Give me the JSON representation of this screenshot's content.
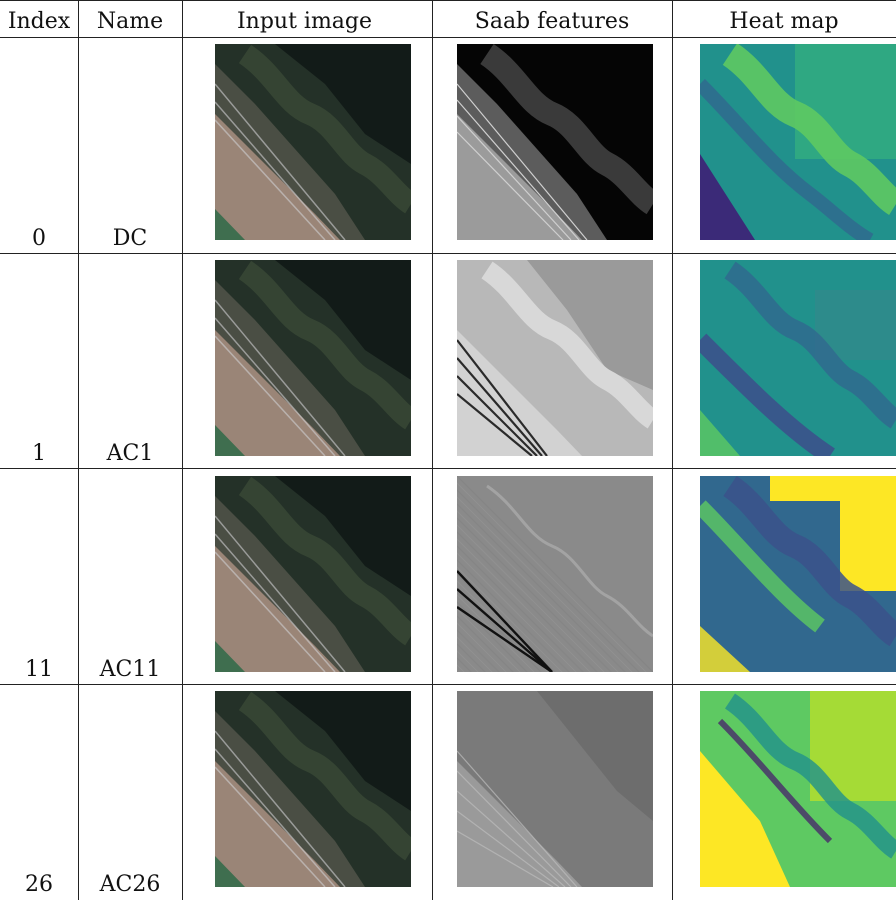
{
  "headers": {
    "index": "Index",
    "name": "Name",
    "input": "Input image",
    "saab": "Saab features",
    "heat": "Heat map"
  },
  "rows": [
    {
      "index": "0",
      "name": "DC",
      "saab_style": "dc",
      "heat_style": "dc"
    },
    {
      "index": "1",
      "name": "AC1",
      "saab_style": "ac1",
      "heat_style": "ac1"
    },
    {
      "index": "11",
      "name": "AC11",
      "saab_style": "ac11",
      "heat_style": "ac11"
    },
    {
      "index": "26",
      "name": "AC26",
      "saab_style": "ac26",
      "heat_style": "ac26"
    }
  ],
  "colors": {
    "satellite_dark": "#121b18",
    "satellite_land": "#a88f80",
    "viridis_dark": "#44146b",
    "viridis_blue": "#31688e",
    "viridis_teal": "#21918c",
    "viridis_green": "#5ec962",
    "viridis_yellow": "#fde725"
  }
}
